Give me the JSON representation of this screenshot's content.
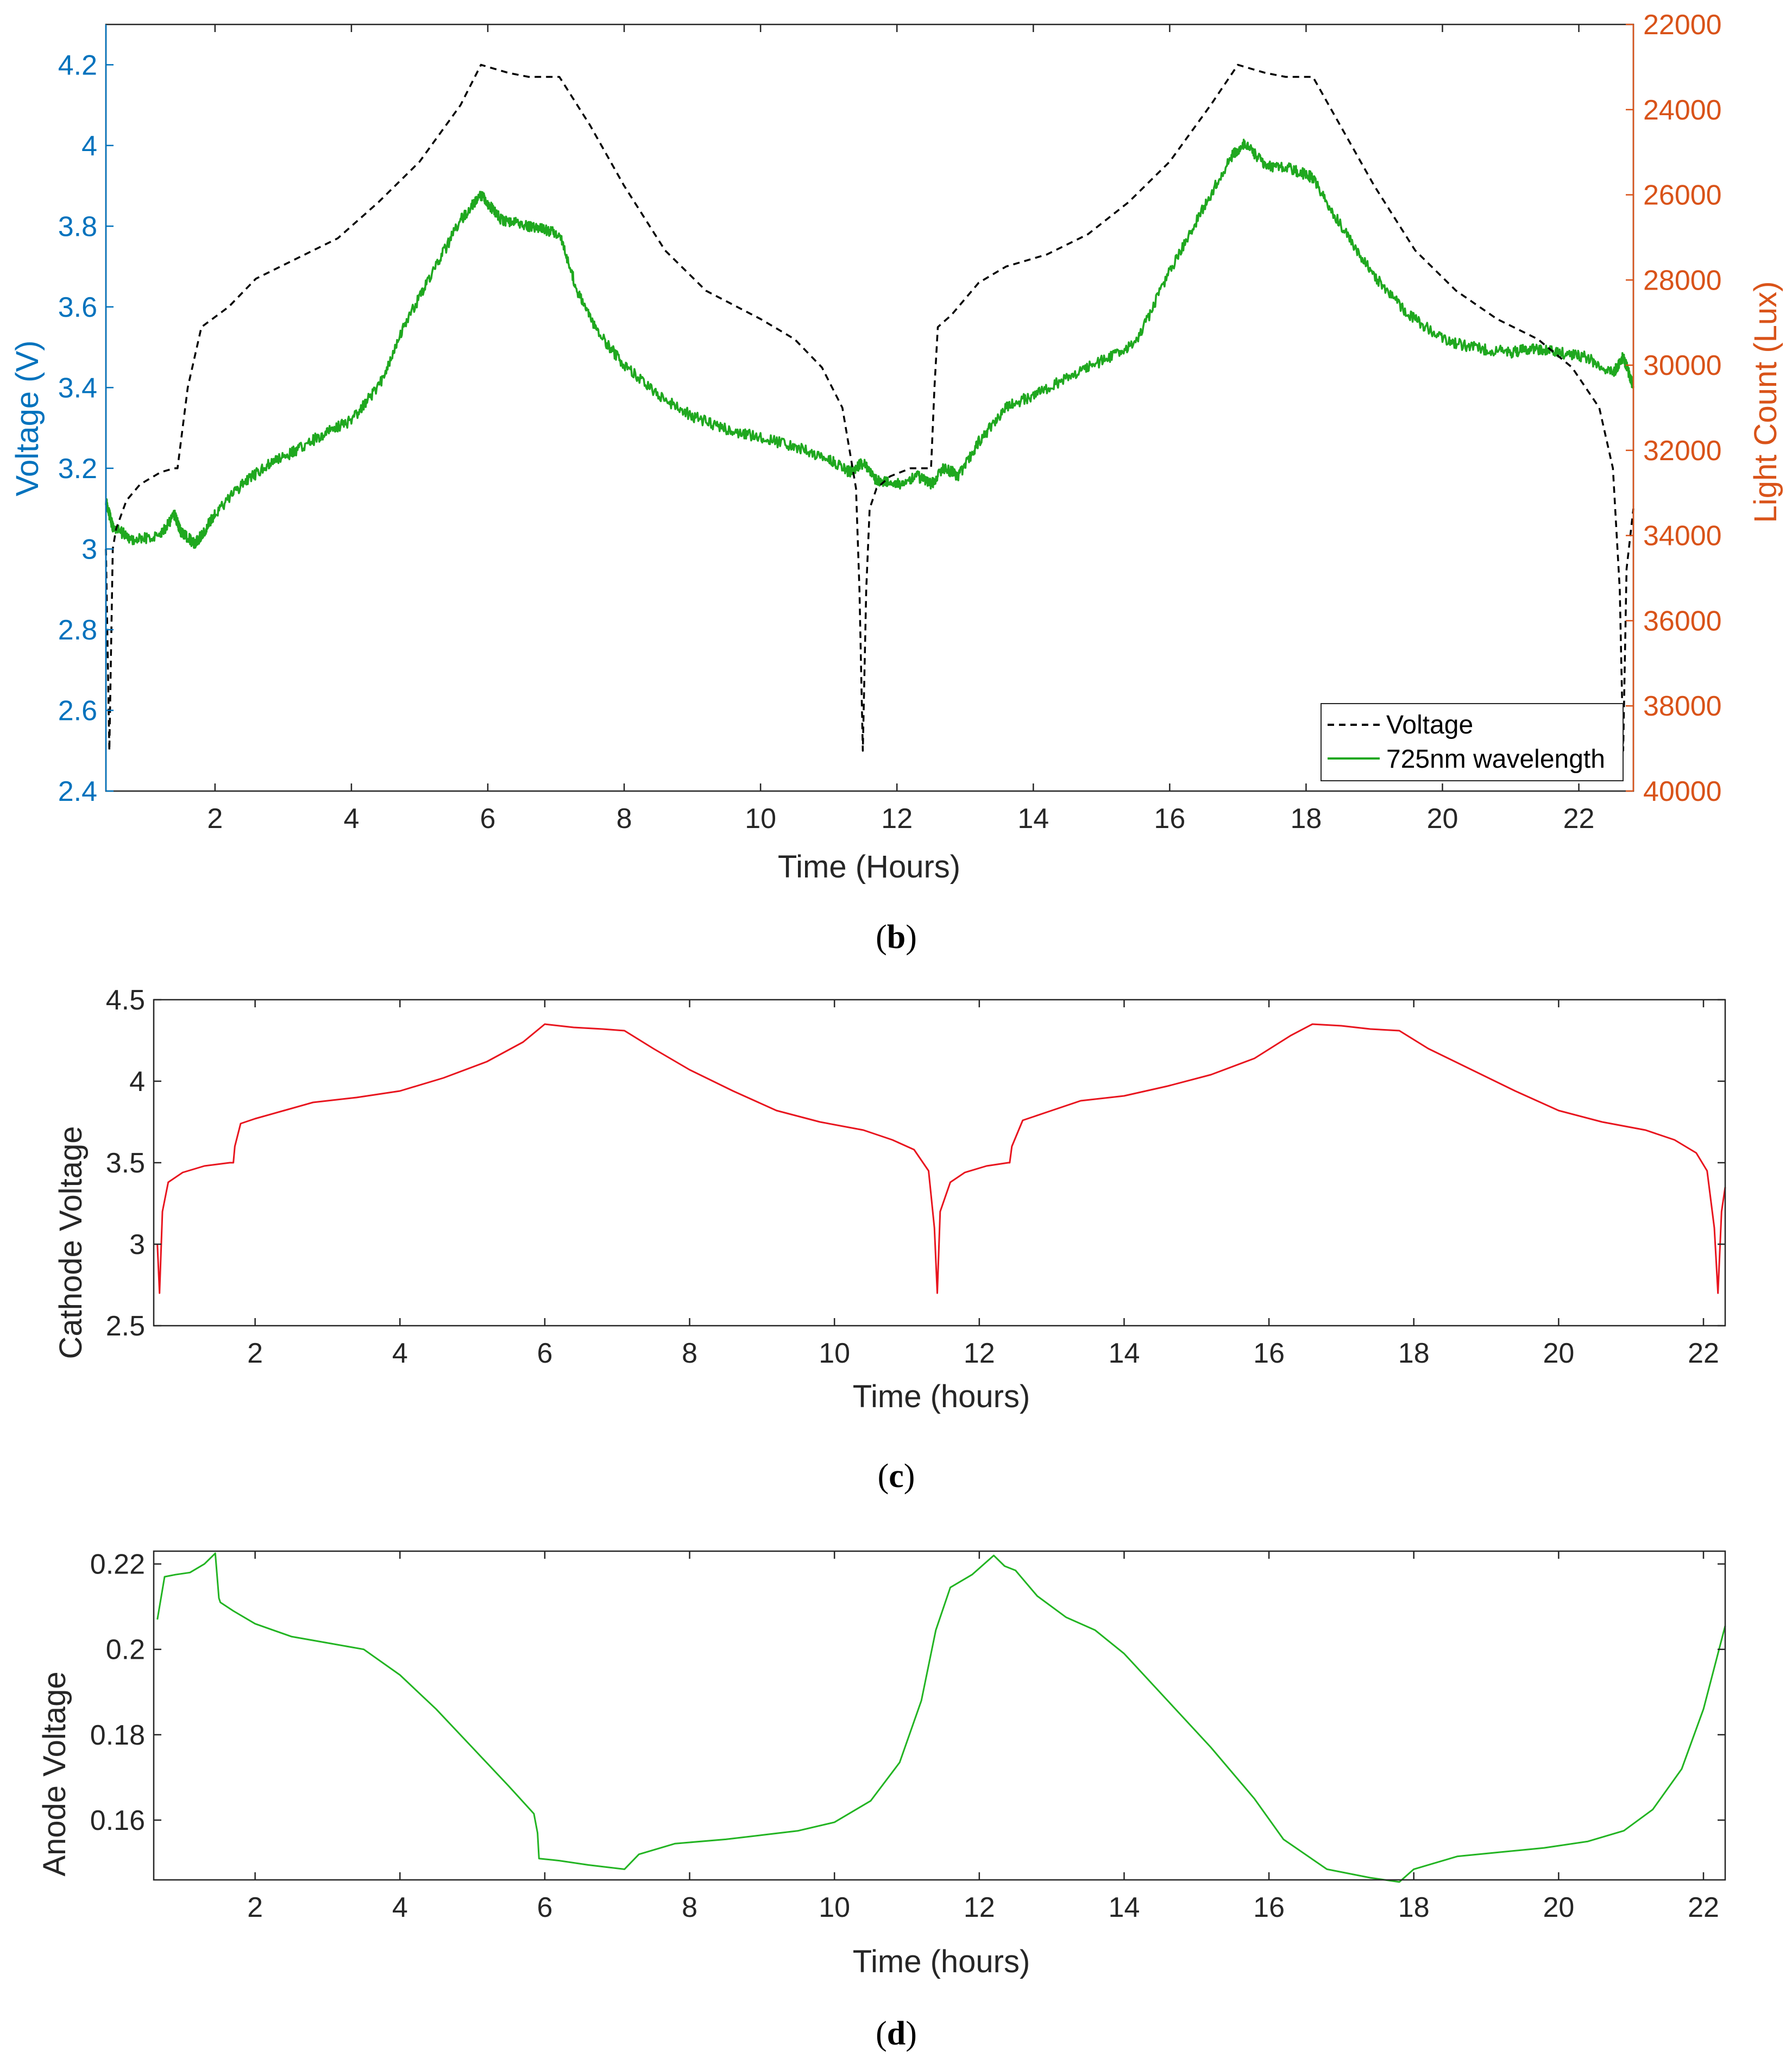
{
  "colors": {
    "left_axis": "#0072bd",
    "right_axis": "#d95319",
    "voltage_line": "#000000",
    "light_line": "#1fa81f",
    "cathode_line": "#e8141e",
    "anode_line": "#22b422",
    "axes": "#262626"
  },
  "chart_data": [
    {
      "type": "line",
      "panel_label": "b",
      "xlabel": "Time (Hours)",
      "ylabel": "Voltage (V)",
      "y2label": "Light Count (Lux)",
      "xlim": [
        0.4,
        22.8
      ],
      "ylim": [
        2.4,
        4.3
      ],
      "y2lim": [
        22000,
        40000
      ],
      "y2_reversed": true,
      "xticks": [
        2,
        4,
        6,
        8,
        10,
        12,
        14,
        16,
        18,
        20,
        22
      ],
      "yticks": [
        2.4,
        2.6,
        2.8,
        3,
        3.2,
        3.4,
        3.6,
        3.8,
        4,
        4.2
      ],
      "ytick_labels": [
        "2.4",
        "2.6",
        "2.8",
        "3",
        "3.2",
        "3.4",
        "3.6",
        "3.8",
        "4",
        "4.2"
      ],
      "y2ticks": [
        22000,
        24000,
        26000,
        28000,
        30000,
        32000,
        34000,
        36000,
        38000,
        40000
      ],
      "legend": {
        "position": "bottom-right",
        "entries": [
          "Voltage",
          "725nm wavelength"
        ]
      },
      "series": [
        {
          "name": "Voltage",
          "axis": "left",
          "style": "dashed",
          "x": [
            0.4,
            0.45,
            0.5,
            0.55,
            0.7,
            0.9,
            1.2,
            1.4,
            1.45,
            1.6,
            1.8,
            2.2,
            2.6,
            3.2,
            3.8,
            4.4,
            5.0,
            5.6,
            5.9,
            6.3,
            6.6,
            7.05,
            7.5,
            8.0,
            8.6,
            9.2,
            10.0,
            10.5,
            10.9,
            11.2,
            11.4,
            11.45,
            11.5,
            11.55,
            11.6,
            11.7,
            11.9,
            12.2,
            12.5,
            12.55,
            12.6,
            12.8,
            13.2,
            13.6,
            14.2,
            14.8,
            15.4,
            16.0,
            16.6,
            17.0,
            17.4,
            17.7,
            18.1,
            18.5,
            19.0,
            19.6,
            20.2,
            20.8,
            21.4,
            21.9,
            22.3,
            22.5,
            22.6,
            22.65,
            22.7,
            22.8
          ],
          "y": [
            3.0,
            2.5,
            3.0,
            3.05,
            3.12,
            3.16,
            3.19,
            3.2,
            3.2,
            3.4,
            3.55,
            3.6,
            3.67,
            3.72,
            3.77,
            3.86,
            3.96,
            4.1,
            4.2,
            4.18,
            4.17,
            4.17,
            4.05,
            3.9,
            3.74,
            3.64,
            3.57,
            3.52,
            3.45,
            3.35,
            3.15,
            2.9,
            2.5,
            2.9,
            3.1,
            3.15,
            3.18,
            3.2,
            3.2,
            3.4,
            3.55,
            3.58,
            3.66,
            3.7,
            3.73,
            3.78,
            3.86,
            3.96,
            4.1,
            4.2,
            4.18,
            4.17,
            4.17,
            4.05,
            3.9,
            3.74,
            3.64,
            3.57,
            3.52,
            3.45,
            3.35,
            3.2,
            2.9,
            2.5,
            2.95,
            3.1
          ]
        },
        {
          "name": "725nm wavelength",
          "axis": "right",
          "style": "solid",
          "x": [
            0.4,
            0.5,
            0.8,
            1.2,
            1.4,
            1.5,
            1.7,
            1.8,
            2.0,
            2.4,
            2.8,
            3.2,
            3.6,
            4.0,
            4.4,
            4.8,
            5.2,
            5.6,
            5.9,
            6.0,
            6.2,
            6.5,
            6.8,
            7.05,
            7.3,
            7.6,
            8.0,
            8.5,
            9.0,
            9.5,
            10.0,
            10.5,
            11.0,
            11.3,
            11.5,
            11.7,
            12.0,
            12.3,
            12.5,
            12.7,
            12.9,
            13.2,
            13.6,
            14.0,
            14.5,
            15.0,
            15.5,
            16.0,
            16.5,
            16.9,
            17.1,
            17.4,
            17.8,
            18.1,
            18.5,
            19.0,
            19.5,
            20.0,
            20.5,
            21.0,
            21.3,
            21.7,
            22.1,
            22.5,
            22.65,
            22.8
          ],
          "y": [
            33200,
            33800,
            34100,
            34000,
            33500,
            33900,
            34200,
            34000,
            33500,
            32800,
            32300,
            32000,
            31600,
            31300,
            30500,
            29000,
            27800,
            26600,
            26000,
            26200,
            26600,
            26700,
            26800,
            26900,
            28200,
            29200,
            30000,
            30700,
            31200,
            31500,
            31700,
            31900,
            32200,
            32500,
            32300,
            32700,
            32800,
            32600,
            32800,
            32400,
            32600,
            31800,
            31000,
            30700,
            30300,
            29900,
            29500,
            27800,
            26300,
            25100,
            24800,
            25300,
            25400,
            25600,
            26700,
            27900,
            28800,
            29400,
            29600,
            29700,
            29600,
            29700,
            29800,
            30200,
            29800,
            30500
          ]
        }
      ]
    },
    {
      "type": "line",
      "panel_label": "c",
      "xlabel": "Time (hours)",
      "ylabel": "Cathode Voltage",
      "xlim": [
        0.6,
        22.3
      ],
      "ylim": [
        2.5,
        4.5
      ],
      "xticks": [
        2,
        4,
        6,
        8,
        10,
        12,
        14,
        16,
        18,
        20,
        22
      ],
      "yticks": [
        2.5,
        3,
        3.5,
        4,
        4.5
      ],
      "ytick_labels": [
        "2.5",
        "3",
        "3.5",
        "4",
        "4.5"
      ],
      "series": [
        {
          "name": "Cathode Voltage",
          "x": [
            0.65,
            0.68,
            0.72,
            0.8,
            1.0,
            1.3,
            1.65,
            1.7,
            1.72,
            1.8,
            2.0,
            2.4,
            2.8,
            3.4,
            4.0,
            4.6,
            5.2,
            5.7,
            6.0,
            6.4,
            6.8,
            7.1,
            7.5,
            8.0,
            8.6,
            9.2,
            9.8,
            10.4,
            10.8,
            11.1,
            11.3,
            11.38,
            11.42,
            11.46,
            11.6,
            11.8,
            12.1,
            12.4,
            12.42,
            12.45,
            12.6,
            13.0,
            13.4,
            14.0,
            14.6,
            15.2,
            15.8,
            16.3,
            16.6,
            17.0,
            17.4,
            17.8,
            18.2,
            18.8,
            19.4,
            20.0,
            20.6,
            21.2,
            21.6,
            21.9,
            22.05,
            22.15,
            22.2,
            22.25,
            22.3
          ],
          "y": [
            3.0,
            2.7,
            3.2,
            3.38,
            3.44,
            3.48,
            3.5,
            3.5,
            3.6,
            3.74,
            3.77,
            3.82,
            3.87,
            3.9,
            3.94,
            4.02,
            4.12,
            4.24,
            4.35,
            4.33,
            4.32,
            4.31,
            4.2,
            4.07,
            3.94,
            3.82,
            3.75,
            3.7,
            3.64,
            3.58,
            3.45,
            3.1,
            2.7,
            3.2,
            3.38,
            3.44,
            3.48,
            3.5,
            3.5,
            3.6,
            3.76,
            3.82,
            3.88,
            3.91,
            3.97,
            4.04,
            4.14,
            4.28,
            4.35,
            4.34,
            4.32,
            4.31,
            4.2,
            4.07,
            3.94,
            3.82,
            3.75,
            3.7,
            3.64,
            3.56,
            3.45,
            3.1,
            2.7,
            3.2,
            3.35
          ]
        }
      ]
    },
    {
      "type": "line",
      "panel_label": "d",
      "xlabel": "Time (hours)",
      "ylabel": "Anode Voltage",
      "xlim": [
        0.6,
        22.3
      ],
      "ylim": [
        0.146,
        0.223
      ],
      "xticks": [
        2,
        4,
        6,
        8,
        10,
        12,
        14,
        16,
        18,
        20,
        22
      ],
      "yticks": [
        0.16,
        0.18,
        0.2,
        0.22
      ],
      "ytick_labels": [
        "0.16",
        "0.18",
        "0.2",
        "0.22"
      ],
      "series": [
        {
          "name": "Anode Voltage",
          "x": [
            0.65,
            0.75,
            0.9,
            1.1,
            1.3,
            1.45,
            1.5,
            1.52,
            1.7,
            2.0,
            2.5,
            3.0,
            3.5,
            4.0,
            4.5,
            5.0,
            5.5,
            5.85,
            5.9,
            5.92,
            6.2,
            6.6,
            7.1,
            7.3,
            7.8,
            8.5,
            9.0,
            9.5,
            10.0,
            10.5,
            10.9,
            11.2,
            11.4,
            11.6,
            11.9,
            12.2,
            12.35,
            12.5,
            12.55,
            12.8,
            13.2,
            13.6,
            14.0,
            14.6,
            15.2,
            15.8,
            16.2,
            16.8,
            17.4,
            17.8,
            18.0,
            18.6,
            19.2,
            19.8,
            20.4,
            20.9,
            21.3,
            21.7,
            22.0,
            22.3
          ],
          "y": [
            0.207,
            0.217,
            0.2175,
            0.218,
            0.22,
            0.2225,
            0.212,
            0.211,
            0.209,
            0.206,
            0.203,
            0.2015,
            0.2,
            0.194,
            0.186,
            0.177,
            0.168,
            0.1615,
            0.157,
            0.151,
            0.1505,
            0.1495,
            0.1485,
            0.152,
            0.1545,
            0.1555,
            0.1565,
            0.1575,
            0.1595,
            0.1645,
            0.1735,
            0.188,
            0.2045,
            0.2145,
            0.2175,
            0.222,
            0.2195,
            0.2185,
            0.2175,
            0.2125,
            0.2075,
            0.2045,
            0.199,
            0.188,
            0.177,
            0.165,
            0.1555,
            0.1485,
            0.1465,
            0.1455,
            0.1485,
            0.1515,
            0.1525,
            0.1535,
            0.155,
            0.1575,
            0.1625,
            0.172,
            0.186,
            0.2055
          ]
        }
      ]
    }
  ]
}
